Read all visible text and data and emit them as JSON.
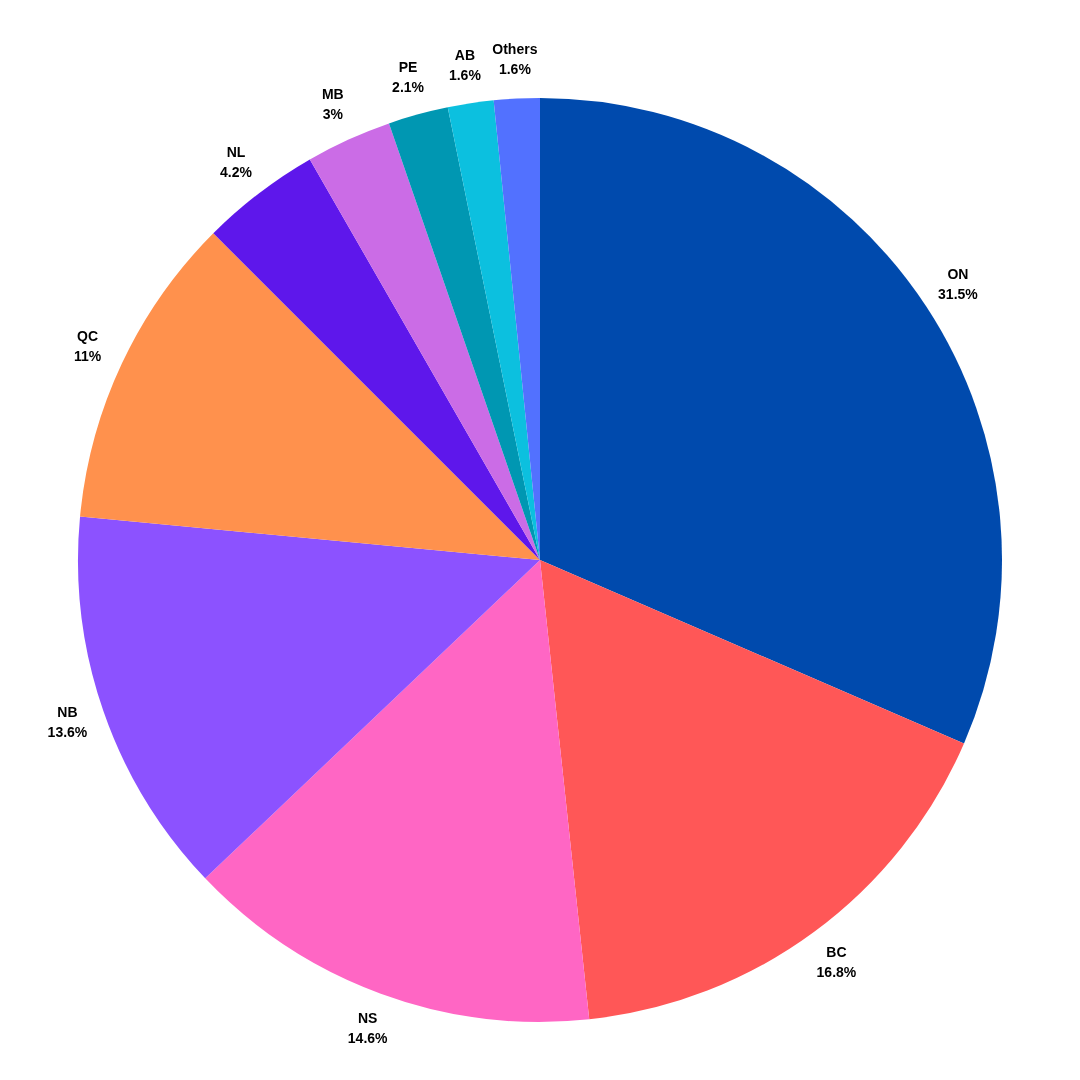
{
  "chart_data": {
    "type": "pie",
    "categories": [
      "ON",
      "BC",
      "NS",
      "NB",
      "QC",
      "NL",
      "MB",
      "PE",
      "AB",
      "Others"
    ],
    "values": [
      31.5,
      16.8,
      14.6,
      13.6,
      11,
      4.2,
      3,
      2.1,
      1.6,
      1.6
    ],
    "value_labels": [
      "31.5%",
      "16.8%",
      "14.6%",
      "13.6%",
      "11%",
      "4.2%",
      "3%",
      "2.1%",
      "1.6%",
      "1.6%"
    ],
    "colors": [
      "#004aad",
      "#ff5757",
      "#ff66c4",
      "#8c52ff",
      "#ff914d",
      "#5e17eb",
      "#cb6ce6",
      "#0097b2",
      "#0cc0df",
      "#5271ff"
    ],
    "legend": false
  }
}
